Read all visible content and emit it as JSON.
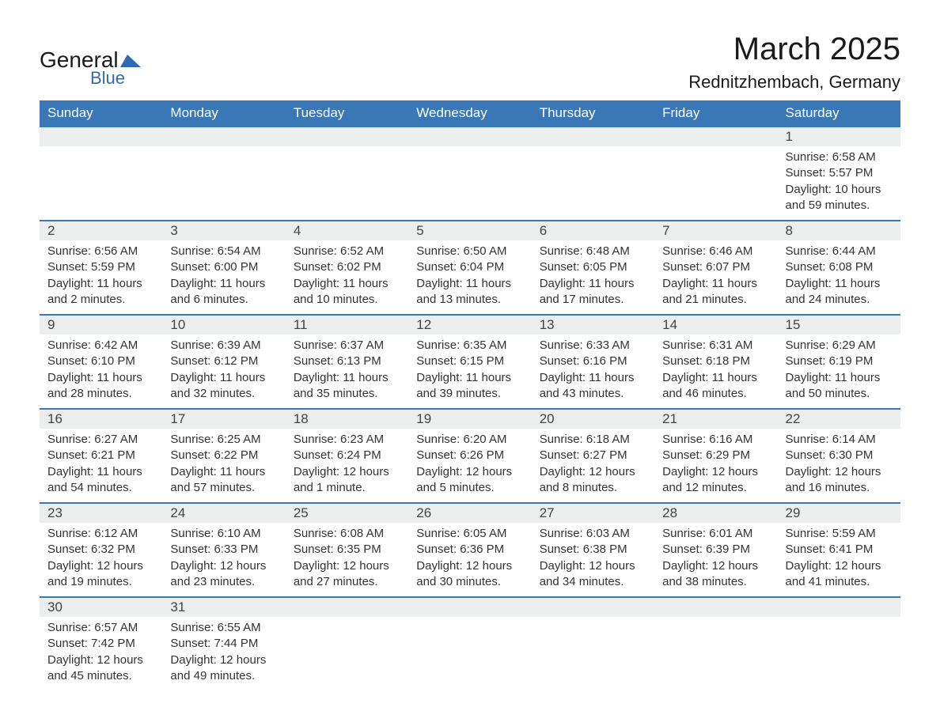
{
  "logo": {
    "general": "General",
    "blue": "Blue",
    "shape_color": "#2e6bb0"
  },
  "title": "March 2025",
  "location": "Rednitzhembach, Germany",
  "day_headers": [
    "Sunday",
    "Monday",
    "Tuesday",
    "Wednesday",
    "Thursday",
    "Friday",
    "Saturday"
  ],
  "colors": {
    "header_bg": "#3a77b7",
    "header_text": "#ffffff",
    "daynum_bg": "#eceded",
    "row_border": "#3a77b7",
    "text": "#333333",
    "background": "#ffffff"
  },
  "weeks": [
    {
      "nums": [
        "",
        "",
        "",
        "",
        "",
        "",
        "1"
      ],
      "details": [
        "",
        "",
        "",
        "",
        "",
        "",
        "Sunrise: 6:58 AM\nSunset: 5:57 PM\nDaylight: 10 hours and 59 minutes."
      ]
    },
    {
      "nums": [
        "2",
        "3",
        "4",
        "5",
        "6",
        "7",
        "8"
      ],
      "details": [
        "Sunrise: 6:56 AM\nSunset: 5:59 PM\nDaylight: 11 hours and 2 minutes.",
        "Sunrise: 6:54 AM\nSunset: 6:00 PM\nDaylight: 11 hours and 6 minutes.",
        "Sunrise: 6:52 AM\nSunset: 6:02 PM\nDaylight: 11 hours and 10 minutes.",
        "Sunrise: 6:50 AM\nSunset: 6:04 PM\nDaylight: 11 hours and 13 minutes.",
        "Sunrise: 6:48 AM\nSunset: 6:05 PM\nDaylight: 11 hours and 17 minutes.",
        "Sunrise: 6:46 AM\nSunset: 6:07 PM\nDaylight: 11 hours and 21 minutes.",
        "Sunrise: 6:44 AM\nSunset: 6:08 PM\nDaylight: 11 hours and 24 minutes."
      ]
    },
    {
      "nums": [
        "9",
        "10",
        "11",
        "12",
        "13",
        "14",
        "15"
      ],
      "details": [
        "Sunrise: 6:42 AM\nSunset: 6:10 PM\nDaylight: 11 hours and 28 minutes.",
        "Sunrise: 6:39 AM\nSunset: 6:12 PM\nDaylight: 11 hours and 32 minutes.",
        "Sunrise: 6:37 AM\nSunset: 6:13 PM\nDaylight: 11 hours and 35 minutes.",
        "Sunrise: 6:35 AM\nSunset: 6:15 PM\nDaylight: 11 hours and 39 minutes.",
        "Sunrise: 6:33 AM\nSunset: 6:16 PM\nDaylight: 11 hours and 43 minutes.",
        "Sunrise: 6:31 AM\nSunset: 6:18 PM\nDaylight: 11 hours and 46 minutes.",
        "Sunrise: 6:29 AM\nSunset: 6:19 PM\nDaylight: 11 hours and 50 minutes."
      ]
    },
    {
      "nums": [
        "16",
        "17",
        "18",
        "19",
        "20",
        "21",
        "22"
      ],
      "details": [
        "Sunrise: 6:27 AM\nSunset: 6:21 PM\nDaylight: 11 hours and 54 minutes.",
        "Sunrise: 6:25 AM\nSunset: 6:22 PM\nDaylight: 11 hours and 57 minutes.",
        "Sunrise: 6:23 AM\nSunset: 6:24 PM\nDaylight: 12 hours and 1 minute.",
        "Sunrise: 6:20 AM\nSunset: 6:26 PM\nDaylight: 12 hours and 5 minutes.",
        "Sunrise: 6:18 AM\nSunset: 6:27 PM\nDaylight: 12 hours and 8 minutes.",
        "Sunrise: 6:16 AM\nSunset: 6:29 PM\nDaylight: 12 hours and 12 minutes.",
        "Sunrise: 6:14 AM\nSunset: 6:30 PM\nDaylight: 12 hours and 16 minutes."
      ]
    },
    {
      "nums": [
        "23",
        "24",
        "25",
        "26",
        "27",
        "28",
        "29"
      ],
      "details": [
        "Sunrise: 6:12 AM\nSunset: 6:32 PM\nDaylight: 12 hours and 19 minutes.",
        "Sunrise: 6:10 AM\nSunset: 6:33 PM\nDaylight: 12 hours and 23 minutes.",
        "Sunrise: 6:08 AM\nSunset: 6:35 PM\nDaylight: 12 hours and 27 minutes.",
        "Sunrise: 6:05 AM\nSunset: 6:36 PM\nDaylight: 12 hours and 30 minutes.",
        "Sunrise: 6:03 AM\nSunset: 6:38 PM\nDaylight: 12 hours and 34 minutes.",
        "Sunrise: 6:01 AM\nSunset: 6:39 PM\nDaylight: 12 hours and 38 minutes.",
        "Sunrise: 5:59 AM\nSunset: 6:41 PM\nDaylight: 12 hours and 41 minutes."
      ]
    },
    {
      "nums": [
        "30",
        "31",
        "",
        "",
        "",
        "",
        ""
      ],
      "details": [
        "Sunrise: 6:57 AM\nSunset: 7:42 PM\nDaylight: 12 hours and 45 minutes.",
        "Sunrise: 6:55 AM\nSunset: 7:44 PM\nDaylight: 12 hours and 49 minutes.",
        "",
        "",
        "",
        "",
        ""
      ]
    }
  ]
}
